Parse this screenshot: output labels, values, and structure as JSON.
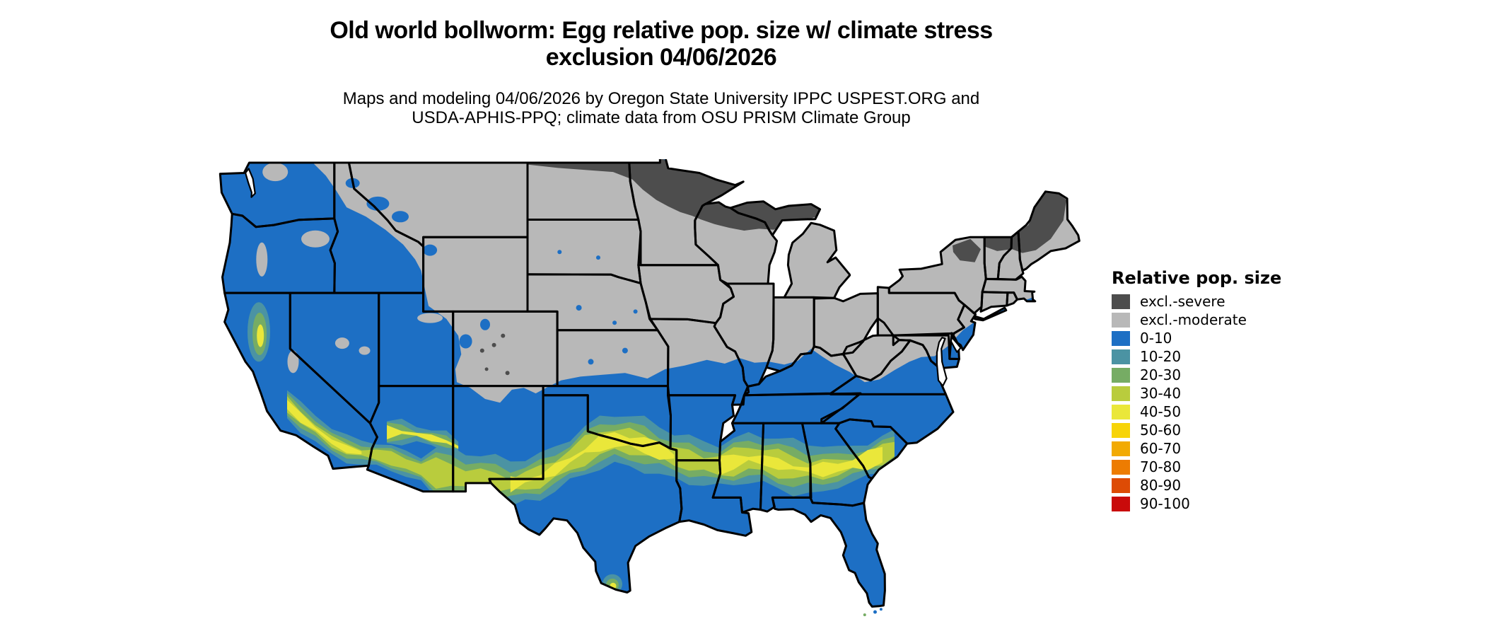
{
  "header": {
    "title_line1": "Old world bollworm: Egg relative pop. size w/ climate stress",
    "title_line2": "exclusion 04/06/2026",
    "subtitle_line1": "Maps and modeling 04/06/2026 by Oregon State University IPPC USPEST.ORG and",
    "subtitle_line2": "USDA-APHIS-PPQ; climate data from OSU PRISM Climate Group"
  },
  "legend": {
    "title": "Relative pop. size",
    "items": [
      {
        "label": "excl.-severe",
        "color": "#4d4d4d"
      },
      {
        "label": "excl.-moderate",
        "color": "#b8b8b8"
      },
      {
        "label": "0-10",
        "color": "#1d6fc4"
      },
      {
        "label": "10-20",
        "color": "#4b93a3"
      },
      {
        "label": "20-30",
        "color": "#76ac64"
      },
      {
        "label": "30-40",
        "color": "#b9cc3d"
      },
      {
        "label": "40-50",
        "color": "#eae73a"
      },
      {
        "label": "50-60",
        "color": "#f7d408"
      },
      {
        "label": "60-70",
        "color": "#f2aa02"
      },
      {
        "label": "70-80",
        "color": "#ed7c02"
      },
      {
        "label": "80-90",
        "color": "#dd4b05"
      },
      {
        "label": "90-100",
        "color": "#c90a0a"
      }
    ]
  },
  "map": {
    "region_label": "Contiguous United States risk raster",
    "border_color": "#000000",
    "water_color": "#ffffff"
  }
}
